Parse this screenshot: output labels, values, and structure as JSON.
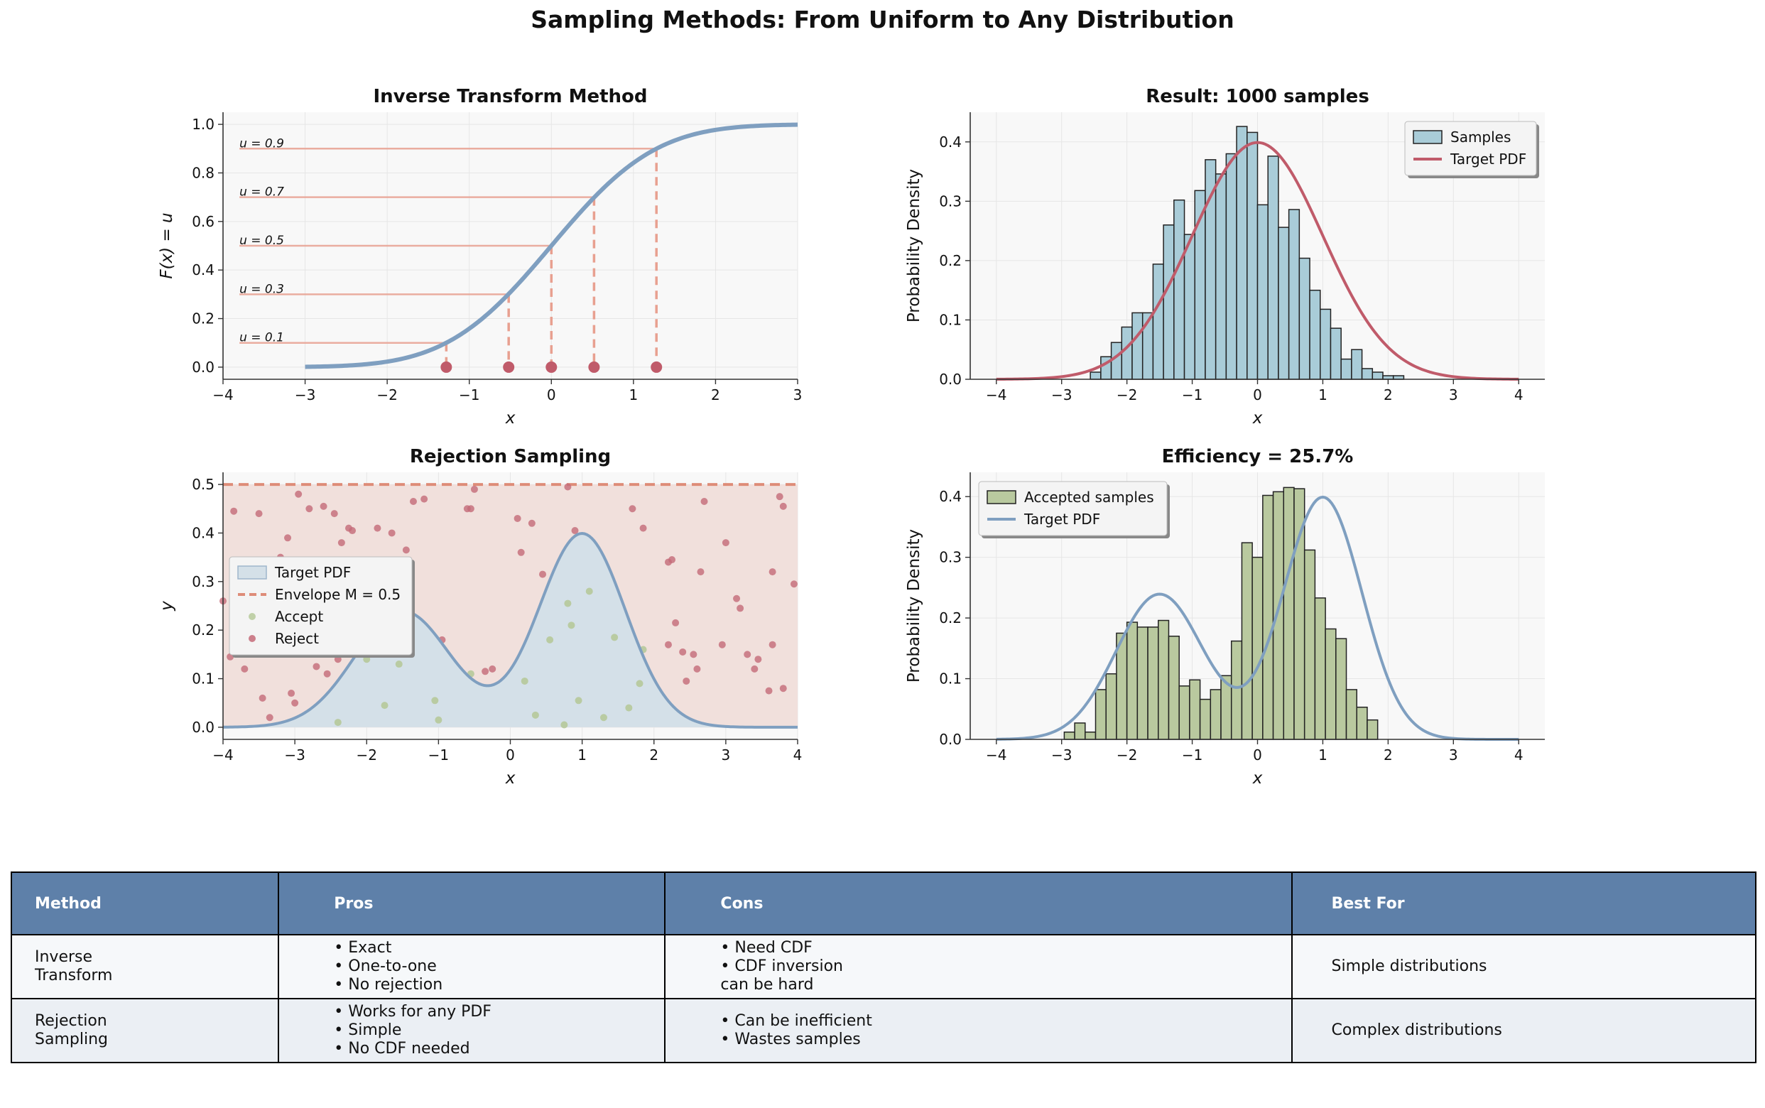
{
  "figure": {
    "suptitle": "Sampling Methods: From Uniform to Any Distribution"
  },
  "colors": {
    "cdf_line": "#7f9fc0",
    "red_accent": "#c05b6a",
    "salmon": "#e8a090",
    "hist_blue": "#a9ccd8",
    "hist_green": "#b9c99f",
    "envelope": "#de8c78",
    "envelope_fill": "#f1e0dc",
    "pdf_fill": "#d4e0e8",
    "accept_pt": "#b6c99a",
    "reject_pt": "#c46a78",
    "axes_bg": "#f8f8f8",
    "table_header": "#5e80a9"
  },
  "chart_data": [
    {
      "type": "line",
      "title": "Inverse Transform Method",
      "xlabel": "x",
      "ylabel": "F(x) = u",
      "xlim": [
        -4,
        3
      ],
      "ylim": [
        -0.05,
        1.05
      ],
      "xticks": [
        -4,
        -3,
        -2,
        -1,
        0,
        1,
        2,
        3
      ],
      "yticks": [
        0.0,
        0.2,
        0.4,
        0.6,
        0.8,
        1.0
      ],
      "grid": true,
      "series": [
        {
          "x_range": [
            -3,
            3
          ],
          "function": "standard normal CDF"
        }
      ],
      "u_levels": [
        0.1,
        0.3,
        0.5,
        0.7,
        0.9
      ],
      "u_labels": [
        "u = 0.1",
        "u = 0.3",
        "u = 0.5",
        "u = 0.7",
        "u = 0.9"
      ],
      "x_samples": [
        -1.28,
        -0.52,
        0.0,
        0.52,
        1.28
      ]
    },
    {
      "type": "bar",
      "title": "Result: 1000 samples",
      "xlabel": "x",
      "ylabel": "Probability Density",
      "xlim": [
        -4.4,
        4.4
      ],
      "ylim": [
        0,
        0.45
      ],
      "xticks": [
        -4,
        -3,
        -2,
        -1,
        0,
        1,
        2,
        3,
        4
      ],
      "yticks": [
        0.0,
        0.1,
        0.2,
        0.3,
        0.4
      ],
      "legend_position": "top-right",
      "legend": [
        "Samples",
        "Target PDF"
      ],
      "bin_start": -2.56,
      "bin_width": 0.16,
      "values": [
        0.012,
        0.038,
        0.062,
        0.088,
        0.112,
        0.112,
        0.194,
        0.26,
        0.302,
        0.244,
        0.318,
        0.37,
        0.346,
        0.38,
        0.426,
        0.416,
        0.294,
        0.376,
        0.256,
        0.286,
        0.204,
        0.15,
        0.118,
        0.086,
        0.034,
        0.05,
        0.018,
        0.012,
        0.006,
        0.006
      ],
      "pdf": {
        "function": "normal",
        "mu": 0,
        "sigma": 1,
        "x_range": [
          -4,
          4
        ]
      }
    },
    {
      "type": "scatter",
      "title": "Rejection Sampling",
      "xlabel": "x",
      "ylabel": "y",
      "xlim": [
        -4,
        4
      ],
      "ylim": [
        -0.025,
        0.525
      ],
      "xticks": [
        -4,
        -3,
        -2,
        -1,
        0,
        1,
        2,
        3,
        4
      ],
      "yticks": [
        0.0,
        0.1,
        0.2,
        0.3,
        0.4,
        0.5
      ],
      "legend_position": "center-left",
      "legend": [
        "Target PDF",
        "Envelope M = 0.5",
        "Accept",
        "Reject"
      ],
      "envelope_M": 0.5,
      "pdf": {
        "function": "mixture",
        "components": [
          {
            "weight": 0.4,
            "mu": -1.5,
            "sigma": 0.667
          },
          {
            "weight": 0.6,
            "mu": 1.0,
            "sigma": 0.6
          }
        ],
        "x_range": [
          -4,
          4
        ]
      },
      "accept": [
        [
          -2.4,
          0.01
        ],
        [
          -2.0,
          0.14
        ],
        [
          -1.75,
          0.045
        ],
        [
          -1.55,
          0.13
        ],
        [
          -1.05,
          0.055
        ],
        [
          -1.0,
          0.015
        ],
        [
          -0.55,
          0.11
        ],
        [
          0.2,
          0.095
        ],
        [
          0.35,
          0.025
        ],
        [
          0.55,
          0.18
        ],
        [
          0.75,
          0.005
        ],
        [
          0.8,
          0.255
        ],
        [
          0.85,
          0.21
        ],
        [
          0.95,
          0.055
        ],
        [
          1.1,
          0.28
        ],
        [
          1.3,
          0.02
        ],
        [
          1.45,
          0.185
        ],
        [
          1.65,
          0.04
        ],
        [
          1.8,
          0.09
        ],
        [
          1.85,
          0.16
        ]
      ],
      "reject": [
        [
          -4.0,
          0.26
        ],
        [
          -3.9,
          0.145
        ],
        [
          -3.85,
          0.445
        ],
        [
          -3.7,
          0.12
        ],
        [
          -3.5,
          0.44
        ],
        [
          -3.45,
          0.06
        ],
        [
          -3.35,
          0.02
        ],
        [
          -3.2,
          0.35
        ],
        [
          -3.1,
          0.39
        ],
        [
          -3.05,
          0.07
        ],
        [
          -3.0,
          0.05
        ],
        [
          -2.95,
          0.48
        ],
        [
          -2.8,
          0.45
        ],
        [
          -2.7,
          0.125
        ],
        [
          -2.6,
          0.455
        ],
        [
          -2.55,
          0.11
        ],
        [
          -2.45,
          0.44
        ],
        [
          -2.4,
          0.14
        ],
        [
          -2.35,
          0.38
        ],
        [
          -2.25,
          0.41
        ],
        [
          -2.2,
          0.405
        ],
        [
          -1.85,
          0.41
        ],
        [
          -1.65,
          0.4
        ],
        [
          -1.45,
          0.365
        ],
        [
          -1.35,
          0.465
        ],
        [
          -1.2,
          0.47
        ],
        [
          -0.95,
          0.18
        ],
        [
          -0.6,
          0.45
        ],
        [
          -0.55,
          0.45
        ],
        [
          -0.5,
          0.49
        ],
        [
          -0.35,
          0.115
        ],
        [
          -0.25,
          0.12
        ],
        [
          0.1,
          0.43
        ],
        [
          0.15,
          0.36
        ],
        [
          0.3,
          0.42
        ],
        [
          0.45,
          0.315
        ],
        [
          0.8,
          0.495
        ],
        [
          0.9,
          0.405
        ],
        [
          1.7,
          0.45
        ],
        [
          1.85,
          0.41
        ],
        [
          2.2,
          0.34
        ],
        [
          2.25,
          0.345
        ],
        [
          2.2,
          0.17
        ],
        [
          2.3,
          0.215
        ],
        [
          2.4,
          0.155
        ],
        [
          2.45,
          0.095
        ],
        [
          2.55,
          0.15
        ],
        [
          2.6,
          0.12
        ],
        [
          2.65,
          0.32
        ],
        [
          2.7,
          0.465
        ],
        [
          2.95,
          0.17
        ],
        [
          3.0,
          0.38
        ],
        [
          3.15,
          0.265
        ],
        [
          3.2,
          0.245
        ],
        [
          3.3,
          0.15
        ],
        [
          3.4,
          0.12
        ],
        [
          3.45,
          0.14
        ],
        [
          3.6,
          0.075
        ],
        [
          3.65,
          0.32
        ],
        [
          3.65,
          0.17
        ],
        [
          3.75,
          0.475
        ],
        [
          3.8,
          0.455
        ],
        [
          3.8,
          0.08
        ],
        [
          3.95,
          0.295
        ]
      ]
    },
    {
      "type": "bar",
      "title": "Efficiency = 25.7%",
      "xlabel": "x",
      "ylabel": "Probability Density",
      "xlim": [
        -4.4,
        4.4
      ],
      "ylim": [
        0,
        0.44
      ],
      "xticks": [
        -4,
        -3,
        -2,
        -1,
        0,
        1,
        2,
        3,
        4
      ],
      "yticks": [
        0.0,
        0.1,
        0.2,
        0.3,
        0.4
      ],
      "legend_position": "top-left",
      "legend": [
        "Accepted samples",
        "Target PDF"
      ],
      "bin_start": -2.96,
      "bin_width": 0.16,
      "values": [
        0.012,
        0.027,
        0.012,
        0.082,
        0.108,
        0.175,
        0.193,
        0.185,
        0.185,
        0.196,
        0.17,
        0.088,
        0.098,
        0.066,
        0.082,
        0.105,
        0.162,
        0.324,
        0.3,
        0.402,
        0.408,
        0.415,
        0.413,
        0.312,
        0.233,
        0.182,
        0.166,
        0.082,
        0.053,
        0.032
      ],
      "pdf": {
        "function": "mixture",
        "components": [
          {
            "weight": 0.4,
            "mu": -1.5,
            "sigma": 0.667
          },
          {
            "weight": 0.6,
            "mu": 1.0,
            "sigma": 0.6
          }
        ],
        "x_range": [
          -4,
          4
        ]
      }
    }
  ],
  "table": {
    "headers": [
      "Method",
      "Pros",
      "Cons",
      "Best For"
    ],
    "rows": [
      [
        "Inverse\nTransform",
        "• Exact\n• One-to-one\n• No rejection",
        "• Need CDF\n• CDF inversion\n  can be hard",
        "Simple distributions"
      ],
      [
        "Rejection\nSampling",
        "• Works for any PDF\n• Simple\n• No CDF needed",
        "• Can be inefficient\n• Wastes samples",
        "Complex distributions"
      ]
    ]
  }
}
